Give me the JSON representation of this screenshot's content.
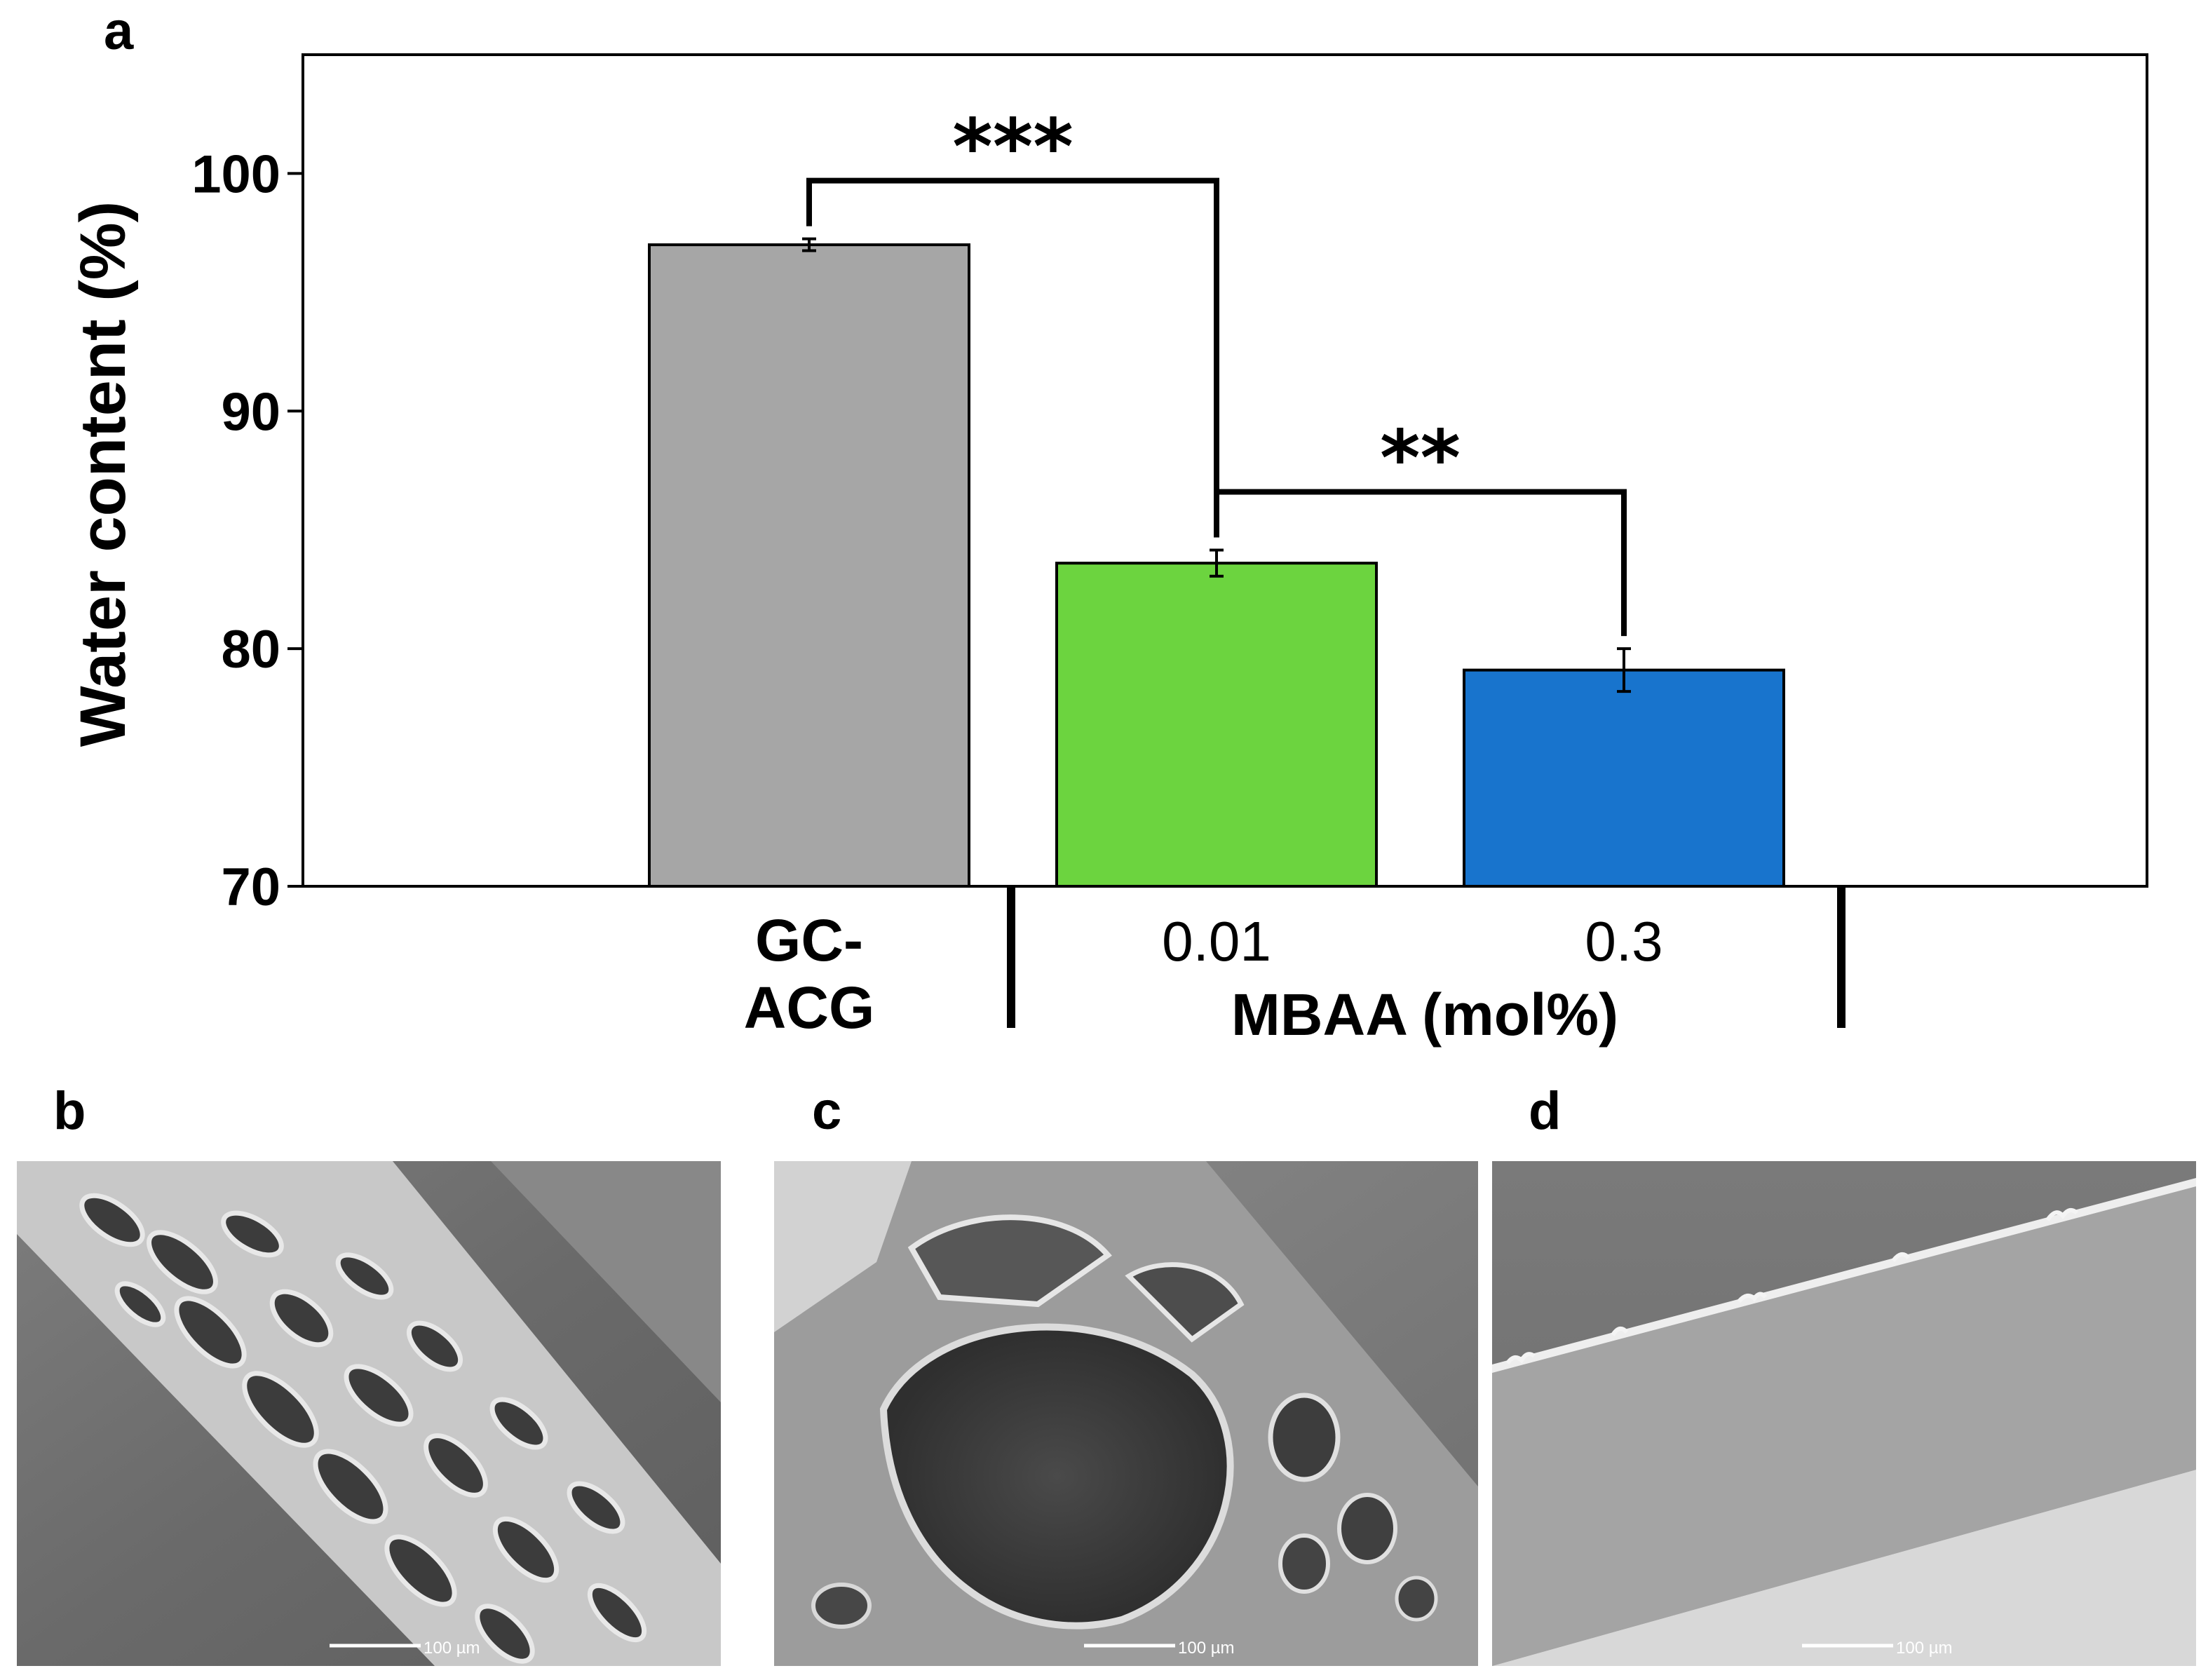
{
  "chart_data": {
    "type": "bar",
    "panel_label": "a",
    "ylabel": "Water content (%)",
    "xlabel": "MBAA (mol%)",
    "ylim": [
      70,
      105
    ],
    "yticks": [
      "70",
      "80",
      "90",
      "100"
    ],
    "categories": [
      "GC-ACG",
      "0.01",
      "0.3"
    ],
    "category_lines": [
      [
        "GC-",
        "ACG"
      ],
      [
        "0.01"
      ],
      [
        "0.3"
      ]
    ],
    "values": [
      97.0,
      83.6,
      79.1
    ],
    "errors": [
      0.25,
      0.55,
      0.9
    ],
    "bar_colors": [
      "#a6a6a6",
      "#6cd43f",
      "#1874cd"
    ],
    "grid": false,
    "significance": [
      {
        "from": 0,
        "to": 1,
        "y": 99.7,
        "label": "***"
      },
      {
        "from": 1,
        "to": 2,
        "y": 86.6,
        "label": "**"
      }
    ]
  },
  "sem_panels": [
    {
      "label": "b",
      "scale_bar": "100 µm",
      "description_icon": "porous-network-icon"
    },
    {
      "label": "c",
      "scale_bar": "100 µm",
      "description_icon": "large-pore-icon"
    },
    {
      "label": "d",
      "scale_bar": "100 µm",
      "description_icon": "dense-film-icon"
    }
  ]
}
